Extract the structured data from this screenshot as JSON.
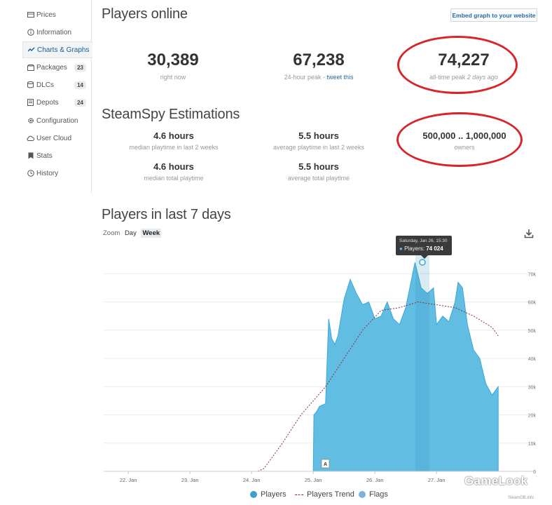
{
  "sidebar": {
    "items": [
      {
        "label": "Prices",
        "icon": "prices-icon"
      },
      {
        "label": "Information",
        "icon": "info-icon"
      },
      {
        "label": "Charts & Graphs",
        "icon": "chart-icon"
      },
      {
        "label": "Packages",
        "icon": "package-icon",
        "badge": "23"
      },
      {
        "label": "DLCs",
        "icon": "dlc-icon",
        "badge": "14"
      },
      {
        "label": "Depots",
        "icon": "depot-icon",
        "badge": "24"
      },
      {
        "label": "Configuration",
        "icon": "gear-icon"
      },
      {
        "label": "User Cloud",
        "icon": "cloud-icon"
      },
      {
        "label": "Stats",
        "icon": "bookmark-icon"
      },
      {
        "label": "History",
        "icon": "history-icon"
      }
    ],
    "active_index": 2
  },
  "header": {
    "title": "Players online",
    "embed_label": "Embed graph to your website"
  },
  "players": {
    "now": {
      "value": "30,389",
      "label": "right now"
    },
    "peak24": {
      "value": "67,238",
      "label": "24-hour peak - ",
      "link": "tweet this"
    },
    "alltime": {
      "value": "74,227",
      "label": "all-time peak ",
      "when": "2 days ago"
    }
  },
  "steamspy": {
    "title": "SteamSpy Estimations",
    "median2w": {
      "value": "4.6 hours",
      "label": "median playtime in last 2 weeks"
    },
    "avg2w": {
      "value": "5.5 hours",
      "label": "average playtime in last 2 weeks"
    },
    "owners": {
      "value": "500,000 .. 1,000,000",
      "label": "owners"
    },
    "median_total": {
      "value": "4.6 hours",
      "label": "median total playtime"
    },
    "avg_total": {
      "value": "5.5 hours",
      "label": "average total playtime"
    }
  },
  "graph": {
    "title": "Players in last 7 days",
    "zoom_label": "Zoom",
    "zoom_options": [
      "Day",
      "Week"
    ],
    "zoom_selected": "Week",
    "tooltip": {
      "date": "Saturday, Jan 26, 15:30",
      "series": "Players: ",
      "value": "74 024"
    },
    "flag": "A",
    "legend": [
      "Players",
      "Players Trend",
      "Flags"
    ],
    "credit": "SteamDB.info"
  },
  "watermark": "GameLook",
  "colors": {
    "accent": "#2a6aa0",
    "area_fill": "#62bde3",
    "area_stroke": "#3aa9d8",
    "trend": "#8b2c3a",
    "highlight_ring": "#d8252a"
  },
  "chart_data": {
    "type": "area",
    "x_ticks": [
      "22. Jan",
      "23. Jan",
      "24. Jan",
      "25. Jan",
      "26. Jan",
      "27. Jan"
    ],
    "y_ticks": [
      "0",
      "10k",
      "20k",
      "30k",
      "40k",
      "50k",
      "60k",
      "70k"
    ],
    "ylim": [
      0,
      80000
    ],
    "series": [
      {
        "name": "Players",
        "points": [
          [
            21.6,
            0
          ],
          [
            25.0,
            0
          ],
          [
            25.01,
            20000
          ],
          [
            25.05,
            21000
          ],
          [
            25.1,
            23000
          ],
          [
            25.2,
            24000
          ],
          [
            25.25,
            54000
          ],
          [
            25.3,
            47000
          ],
          [
            25.35,
            45000
          ],
          [
            25.4,
            48000
          ],
          [
            25.5,
            61000
          ],
          [
            25.6,
            68000
          ],
          [
            25.7,
            63000
          ],
          [
            25.8,
            59000
          ],
          [
            25.9,
            60000
          ],
          [
            26.0,
            54000
          ],
          [
            26.1,
            55000
          ],
          [
            26.2,
            60000
          ],
          [
            26.3,
            54000
          ],
          [
            26.4,
            52000
          ],
          [
            26.5,
            58000
          ],
          [
            26.65,
            74024
          ],
          [
            26.75,
            65000
          ],
          [
            26.85,
            63000
          ],
          [
            26.95,
            65000
          ],
          [
            27.0,
            52000
          ],
          [
            27.1,
            55000
          ],
          [
            27.2,
            53000
          ],
          [
            27.3,
            60000
          ],
          [
            27.35,
            67000
          ],
          [
            27.42,
            65000
          ],
          [
            27.5,
            52000
          ],
          [
            27.6,
            43000
          ],
          [
            27.7,
            40000
          ],
          [
            27.8,
            31000
          ],
          [
            27.9,
            27000
          ],
          [
            28.0,
            30000
          ]
        ]
      },
      {
        "name": "Players Trend",
        "points": [
          [
            21.6,
            0
          ],
          [
            24.1,
            0
          ],
          [
            24.2,
            1000
          ],
          [
            24.5,
            10000
          ],
          [
            24.8,
            20000
          ],
          [
            25.0,
            25000
          ],
          [
            25.2,
            30000
          ],
          [
            25.5,
            40000
          ],
          [
            25.8,
            50000
          ],
          [
            26.1,
            57000
          ],
          [
            26.4,
            58000
          ],
          [
            26.7,
            60000
          ],
          [
            27.0,
            59000
          ],
          [
            27.3,
            58000
          ],
          [
            27.6,
            55000
          ],
          [
            27.9,
            51000
          ],
          [
            28.0,
            48000
          ]
        ]
      }
    ]
  }
}
